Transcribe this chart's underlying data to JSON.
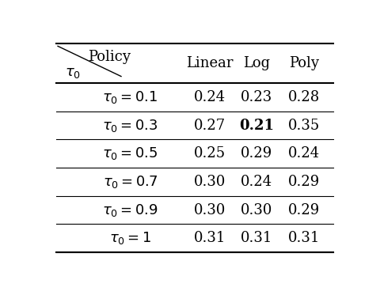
{
  "rows": [
    {
      "label": "$\\tau_0 = 0.1$",
      "linear": "0.24",
      "log": "0.23",
      "poly": "0.28",
      "bold_col": null
    },
    {
      "label": "$\\tau_0 = 0.3$",
      "linear": "0.27",
      "log": "0.21",
      "poly": "0.35",
      "bold_col": "log"
    },
    {
      "label": "$\\tau_0 = 0.5$",
      "linear": "0.25",
      "log": "0.29",
      "poly": "0.24",
      "bold_col": null
    },
    {
      "label": "$\\tau_0 = 0.7$",
      "linear": "0.30",
      "log": "0.24",
      "poly": "0.29",
      "bold_col": null
    },
    {
      "label": "$\\tau_0 = 0.9$",
      "linear": "0.30",
      "log": "0.30",
      "poly": "0.29",
      "bold_col": null
    },
    {
      "label": "$\\tau_0 = 1$",
      "linear": "0.31",
      "log": "0.31",
      "poly": "0.31",
      "bold_col": null
    }
  ],
  "col_headers": [
    "Linear",
    "Log",
    "Poly"
  ],
  "row_header_top": "Policy",
  "row_header_bot": "$\\tau_0$",
  "bg_color": "#ffffff",
  "text_color": "#000000",
  "line_color": "#000000",
  "font_size": 13,
  "header_font_size": 13
}
